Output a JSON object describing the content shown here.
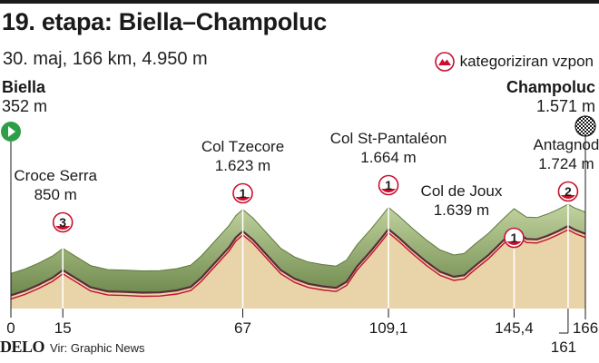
{
  "header": {
    "title": "19. etapa: Biella–Champoluc",
    "subtitle": "30. maj, 166 km, 4.950 m",
    "legend_label": "kategoriziran vzpon"
  },
  "start": {
    "name": "Biella",
    "altitude": "352 m"
  },
  "finish": {
    "name": "Champoluc",
    "altitude": "1.571 m"
  },
  "footer": {
    "brand": "DELO",
    "source": "Vir: Graphic News"
  },
  "colors": {
    "accent": "#c8102e",
    "start_flag": "#2e9e48",
    "terrain": "#e9d3a8",
    "ridge": "#97ad6c"
  },
  "chart_data": {
    "type": "area",
    "x_unit": "km",
    "title": "19. etapa: Biella–Champoluc",
    "xlim": [
      0,
      166
    ],
    "ylim": [
      0,
      1800
    ],
    "x_ticks": [
      {
        "value": 0,
        "label": "0"
      },
      {
        "value": 15,
        "label": "15"
      },
      {
        "value": 67,
        "label": "67"
      },
      {
        "value": 109.1,
        "label": "109,1"
      },
      {
        "value": 145.4,
        "label": "145,4"
      },
      {
        "value": 161,
        "label": "161"
      },
      {
        "value": 166,
        "label": "166"
      }
    ],
    "profile": [
      [
        0,
        352
      ],
      [
        4,
        440
      ],
      [
        8,
        560
      ],
      [
        12,
        700
      ],
      [
        15,
        850
      ],
      [
        19,
        680
      ],
      [
        23,
        510
      ],
      [
        28,
        430
      ],
      [
        33,
        420
      ],
      [
        38,
        405
      ],
      [
        43,
        410
      ],
      [
        48,
        450
      ],
      [
        52,
        520
      ],
      [
        55,
        700
      ],
      [
        59,
        1000
      ],
      [
        63,
        1300
      ],
      [
        65,
        1500
      ],
      [
        67,
        1623
      ],
      [
        70,
        1450
      ],
      [
        74,
        1150
      ],
      [
        78,
        850
      ],
      [
        82,
        680
      ],
      [
        86,
        580
      ],
      [
        90,
        530
      ],
      [
        94,
        500
      ],
      [
        97,
        620
      ],
      [
        100,
        920
      ],
      [
        104,
        1230
      ],
      [
        107,
        1480
      ],
      [
        109.1,
        1664
      ],
      [
        112,
        1500
      ],
      [
        116,
        1250
      ],
      [
        120,
        1020
      ],
      [
        124,
        820
      ],
      [
        128,
        720
      ],
      [
        131,
        750
      ],
      [
        134,
        930
      ],
      [
        138,
        1150
      ],
      [
        142,
        1420
      ],
      [
        145.4,
        1639
      ],
      [
        149,
        1470
      ],
      [
        152,
        1460
      ],
      [
        155,
        1530
      ],
      [
        158,
        1620
      ],
      [
        161,
        1724
      ],
      [
        163,
        1650
      ],
      [
        166,
        1571
      ]
    ],
    "climbs": [
      {
        "name": "Croce Serra",
        "altitude": "850 m",
        "category": "3",
        "km": 15
      },
      {
        "name": "Col Tzecore",
        "altitude": "1.623 m",
        "category": "1",
        "km": 67
      },
      {
        "name": "Col St-Pantaléon",
        "altitude": "1.664 m",
        "category": "1",
        "km": 109.1
      },
      {
        "name": "Col de Joux",
        "altitude": "1.639 m",
        "category": "1",
        "km": 145.4
      },
      {
        "name": "Antagnod",
        "altitude": "1.724 m",
        "category": "2",
        "km": 161
      }
    ]
  }
}
